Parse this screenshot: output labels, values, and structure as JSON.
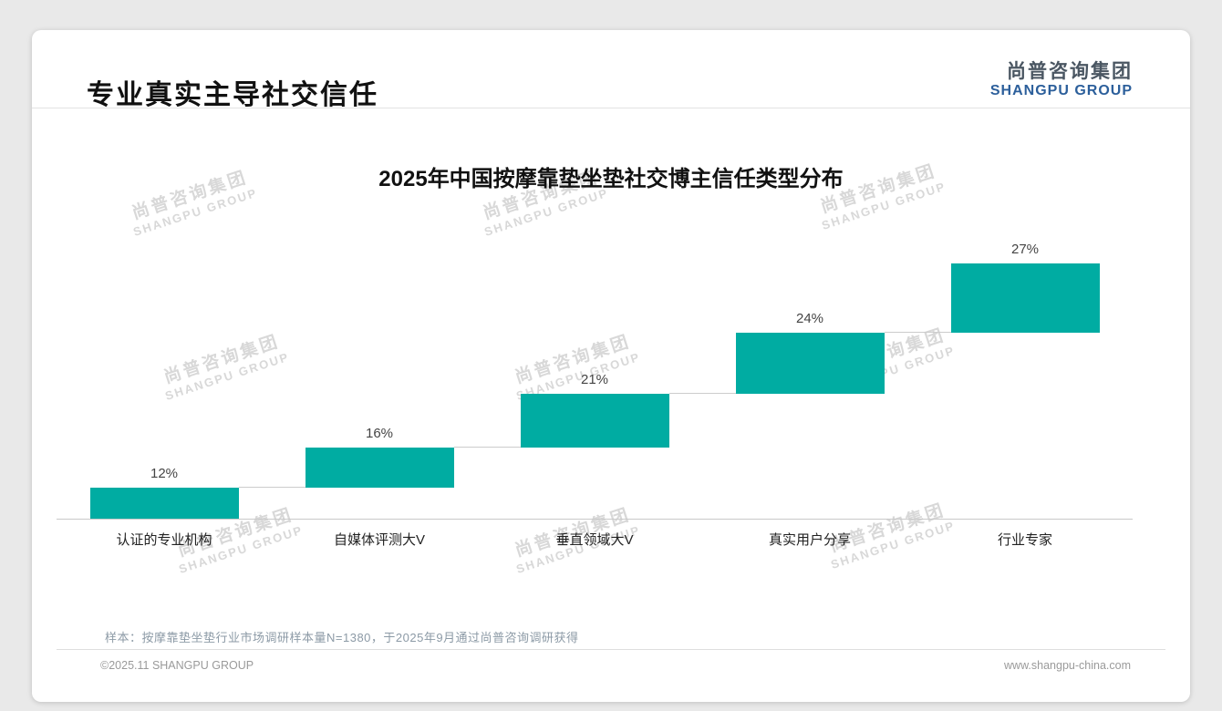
{
  "page": {
    "title": "专业真实主导社交信任",
    "logo": {
      "cn": "尚普咨询集团",
      "en": "SHANGPU GROUP"
    },
    "watermark": {
      "cn": "尚普咨询集团",
      "en": "SHANGPU GROUP"
    },
    "note": "样本：按摩靠垫坐垫行业市场调研样本量N=1380，于2025年9月通过尚普咨询调研获得",
    "footer": {
      "copyright": "©2025.11 SHANGPU GROUP",
      "website": "www.shangpu-china.com"
    }
  },
  "chart_data": {
    "type": "bar",
    "subtype": "waterfall",
    "title": "2025年中国按摩靠垫坐垫社交博主信任类型分布",
    "categories": [
      "认证的专业机构",
      "自媒体评测大V",
      "垂直领域大V",
      "真实用户分享",
      "行业专家"
    ],
    "values": [
      12,
      16,
      21,
      24,
      27
    ],
    "value_labels": [
      "12%",
      "16%",
      "21%",
      "24%",
      "27%"
    ],
    "unit": "%",
    "ylim": [
      0,
      100
    ],
    "cumulative": true,
    "grid": false,
    "legend": false,
    "bar_color": "#00ACA2"
  },
  "colors": {
    "bar": "#00ACA2",
    "logo_cn": "#4A5662",
    "logo_en": "#2C5F9B",
    "watermark": "#D8D8D8"
  }
}
